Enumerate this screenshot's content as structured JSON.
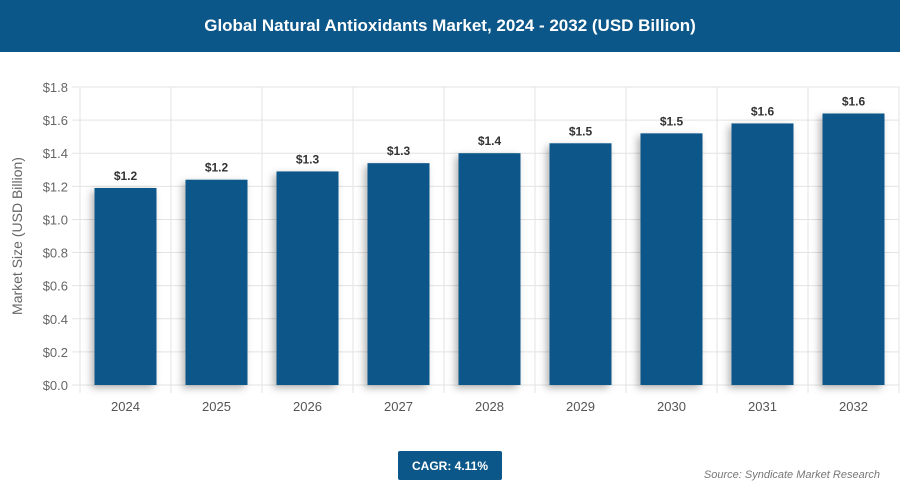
{
  "header": {
    "title": "Global Natural Antioxidants Market, 2024 - 2032 (USD Billion)"
  },
  "footer": {
    "cagr": "CAGR: 4.11%",
    "source": "Source: Syndicate Market Research"
  },
  "colors": {
    "bar": "#0b5789",
    "header": "#0b5789"
  },
  "chart_data": {
    "type": "bar",
    "title": "Global Natural Antioxidants Market, 2024 - 2032 (USD Billion)",
    "ylabel": "Market Size (USD Billion)",
    "xlabel": "",
    "ylim": [
      0,
      1.8
    ],
    "yticks": [
      "$0.0",
      "$0.2",
      "$0.4",
      "$0.6",
      "$0.8",
      "$1.0",
      "$1.2",
      "$1.4",
      "$1.6",
      "$1.8"
    ],
    "grid": true,
    "categories": [
      "2024",
      "2025",
      "2026",
      "2027",
      "2028",
      "2029",
      "2030",
      "2031",
      "2032"
    ],
    "values": [
      1.19,
      1.24,
      1.29,
      1.34,
      1.4,
      1.46,
      1.52,
      1.58,
      1.64
    ],
    "data_labels": [
      "$1.2",
      "$1.2",
      "$1.3",
      "$1.3",
      "$1.4",
      "$1.5",
      "$1.5",
      "$1.6",
      "$1.6"
    ]
  }
}
